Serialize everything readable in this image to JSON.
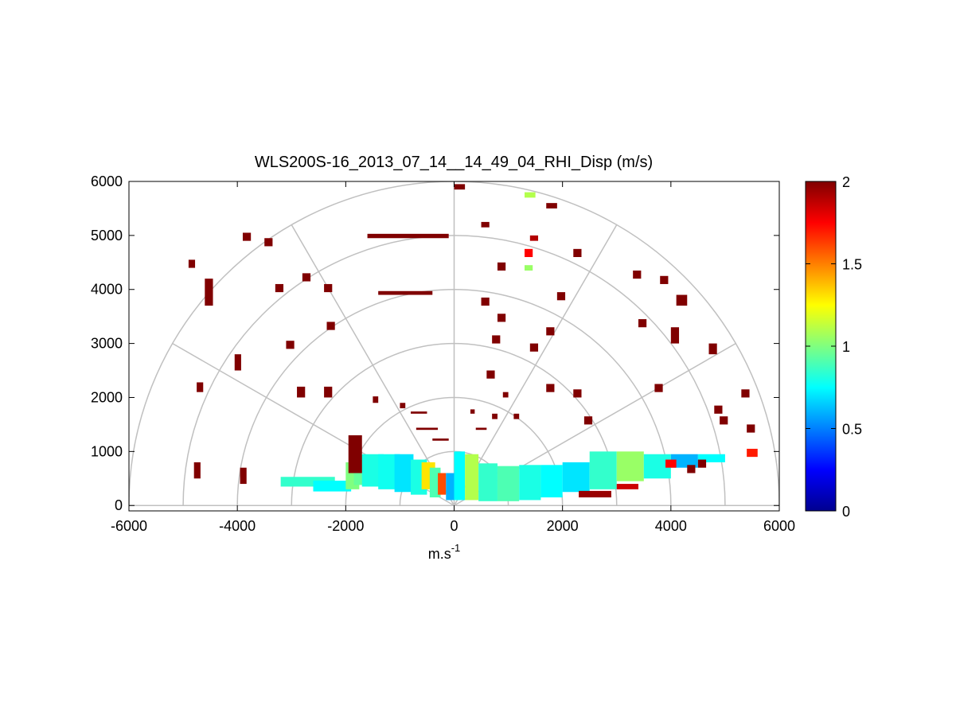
{
  "chart_data": {
    "type": "heatmap",
    "subtype": "polar-rhi-sector",
    "title": "WLS200S-16_2013_07_14__14_49_04_RHI_Disp (m/s)",
    "xlabel": "m.s",
    "xlabel_superscript": "-1",
    "ylabel": "",
    "xlim": [
      -6000,
      6000
    ],
    "ylim": [
      -100,
      6000
    ],
    "x_ticks": [
      -6000,
      -4000,
      -2000,
      0,
      2000,
      4000,
      6000
    ],
    "y_ticks": [
      0,
      1000,
      2000,
      3000,
      4000,
      5000,
      6000
    ],
    "x_tick_labels": [
      "-6000",
      "-4000",
      "-2000",
      "0",
      "2000",
      "4000",
      "6000"
    ],
    "y_tick_labels": [
      "0",
      "1000",
      "2000",
      "3000",
      "4000",
      "5000",
      "6000"
    ],
    "polar_grid": {
      "range_rings": [
        1000,
        2000,
        3000,
        4000,
        5000,
        6000
      ],
      "spoke_angles_deg": [
        0,
        30,
        60,
        90,
        120,
        150,
        180
      ],
      "grid_color": "#c0c0c0"
    },
    "colorbar": {
      "colormap": "jet",
      "min": 0,
      "max": 2,
      "ticks": [
        0,
        0.5,
        1,
        1.5,
        2
      ],
      "tick_labels": [
        "0",
        "0.5",
        "1",
        "1.5",
        "2"
      ]
    },
    "cells": [
      {
        "x": -3200,
        "y": 350,
        "w": 1000,
        "h": 180,
        "v": 0.85
      },
      {
        "x": -2600,
        "y": 260,
        "w": 700,
        "h": 200,
        "v": 0.75
      },
      {
        "x": -2000,
        "y": 300,
        "w": 250,
        "h": 500,
        "v": 1.0
      },
      {
        "x": -1850,
        "y": 380,
        "w": 200,
        "h": 550,
        "v": 0.95
      },
      {
        "x": -1700,
        "y": 350,
        "w": 400,
        "h": 600,
        "v": 0.8
      },
      {
        "x": -1400,
        "y": 300,
        "w": 400,
        "h": 650,
        "v": 0.78
      },
      {
        "x": -1100,
        "y": 250,
        "w": 350,
        "h": 700,
        "v": 0.7
      },
      {
        "x": -800,
        "y": 200,
        "w": 300,
        "h": 650,
        "v": 0.8
      },
      {
        "x": -600,
        "y": 300,
        "w": 250,
        "h": 500,
        "v": 1.3
      },
      {
        "x": -450,
        "y": 150,
        "w": 200,
        "h": 550,
        "v": 0.9
      },
      {
        "x": -300,
        "y": 200,
        "w": 150,
        "h": 400,
        "v": 1.6
      },
      {
        "x": -150,
        "y": 100,
        "w": 150,
        "h": 500,
        "v": 0.6
      },
      {
        "x": 0,
        "y": 100,
        "w": 200,
        "h": 900,
        "v": 0.75
      },
      {
        "x": 200,
        "y": 100,
        "w": 250,
        "h": 850,
        "v": 1.1
      },
      {
        "x": 450,
        "y": 80,
        "w": 350,
        "h": 700,
        "v": 0.85
      },
      {
        "x": 800,
        "y": 80,
        "w": 400,
        "h": 650,
        "v": 0.9
      },
      {
        "x": 1200,
        "y": 100,
        "w": 400,
        "h": 650,
        "v": 0.8
      },
      {
        "x": 1600,
        "y": 150,
        "w": 400,
        "h": 600,
        "v": 0.75
      },
      {
        "x": 2000,
        "y": 250,
        "w": 500,
        "h": 550,
        "v": 0.7
      },
      {
        "x": 2500,
        "y": 300,
        "w": 500,
        "h": 700,
        "v": 0.85
      },
      {
        "x": 3000,
        "y": 450,
        "w": 500,
        "h": 550,
        "v": 1.05
      },
      {
        "x": 3500,
        "y": 500,
        "w": 500,
        "h": 450,
        "v": 0.8
      },
      {
        "x": 4000,
        "y": 700,
        "w": 500,
        "h": 250,
        "v": 0.6
      },
      {
        "x": 4500,
        "y": 800,
        "w": 500,
        "h": 150,
        "v": 0.75
      },
      {
        "x": 2300,
        "y": 150,
        "w": 600,
        "h": 120,
        "v": 1.95
      },
      {
        "x": 3000,
        "y": 300,
        "w": 400,
        "h": 100,
        "v": 1.85
      },
      {
        "x": 3900,
        "y": 700,
        "w": 200,
        "h": 150,
        "v": 1.75
      },
      {
        "x": 5400,
        "y": 900,
        "w": 200,
        "h": 150,
        "v": 1.7
      },
      {
        "x": -4800,
        "y": 500,
        "w": 120,
        "h": 300,
        "v": 2.0
      },
      {
        "x": -3950,
        "y": 400,
        "w": 120,
        "h": 300,
        "v": 2.0
      },
      {
        "x": -1950,
        "y": 600,
        "w": 250,
        "h": 700,
        "v": 2.0
      },
      {
        "x": -4750,
        "y": 2100,
        "w": 120,
        "h": 180,
        "v": 2.0
      },
      {
        "x": -4050,
        "y": 2500,
        "w": 120,
        "h": 300,
        "v": 2.0
      },
      {
        "x": -2900,
        "y": 2000,
        "w": 150,
        "h": 200,
        "v": 2.0
      },
      {
        "x": -2400,
        "y": 2000,
        "w": 150,
        "h": 200,
        "v": 2.0
      },
      {
        "x": -4600,
        "y": 3700,
        "w": 150,
        "h": 500,
        "v": 2.0
      },
      {
        "x": -4900,
        "y": 4400,
        "w": 120,
        "h": 150,
        "v": 2.0
      },
      {
        "x": -3500,
        "y": 4800,
        "w": 150,
        "h": 150,
        "v": 2.0
      },
      {
        "x": -3300,
        "y": 3950,
        "w": 150,
        "h": 150,
        "v": 2.0
      },
      {
        "x": -2350,
        "y": 3250,
        "w": 150,
        "h": 150,
        "v": 2.0
      },
      {
        "x": -2400,
        "y": 3950,
        "w": 150,
        "h": 150,
        "v": 2.0
      },
      {
        "x": -2800,
        "y": 4150,
        "w": 150,
        "h": 150,
        "v": 2.0
      },
      {
        "x": -3100,
        "y": 2900,
        "w": 150,
        "h": 150,
        "v": 2.0
      },
      {
        "x": -3900,
        "y": 4900,
        "w": 150,
        "h": 150,
        "v": 2.0
      },
      {
        "x": -1600,
        "y": 4950,
        "w": 1500,
        "h": 80,
        "v": 2.0
      },
      {
        "x": -1400,
        "y": 3900,
        "w": 1000,
        "h": 70,
        "v": 2.0
      },
      {
        "x": -1500,
        "y": 1900,
        "w": 100,
        "h": 120,
        "v": 2.0
      },
      {
        "x": -1000,
        "y": 1800,
        "w": 100,
        "h": 100,
        "v": 2.0
      },
      {
        "x": 0,
        "y": 5850,
        "w": 200,
        "h": 100,
        "v": 2.0
      },
      {
        "x": 500,
        "y": 5150,
        "w": 150,
        "h": 100,
        "v": 2.0
      },
      {
        "x": 1300,
        "y": 5700,
        "w": 200,
        "h": 100,
        "v": 1.1
      },
      {
        "x": 1700,
        "y": 5500,
        "w": 200,
        "h": 100,
        "v": 2.0
      },
      {
        "x": 1300,
        "y": 4600,
        "w": 150,
        "h": 150,
        "v": 1.75
      },
      {
        "x": 1300,
        "y": 4350,
        "w": 150,
        "h": 100,
        "v": 1.05
      },
      {
        "x": 1400,
        "y": 4900,
        "w": 150,
        "h": 100,
        "v": 1.9
      },
      {
        "x": 2200,
        "y": 4600,
        "w": 150,
        "h": 150,
        "v": 2.0
      },
      {
        "x": 1900,
        "y": 3800,
        "w": 150,
        "h": 150,
        "v": 2.0
      },
      {
        "x": 1700,
        "y": 3150,
        "w": 150,
        "h": 150,
        "v": 2.0
      },
      {
        "x": 1400,
        "y": 2850,
        "w": 150,
        "h": 150,
        "v": 2.0
      },
      {
        "x": 3300,
        "y": 4200,
        "w": 150,
        "h": 150,
        "v": 2.0
      },
      {
        "x": 3800,
        "y": 4100,
        "w": 150,
        "h": 150,
        "v": 2.0
      },
      {
        "x": 4100,
        "y": 3700,
        "w": 200,
        "h": 200,
        "v": 2.0
      },
      {
        "x": 3400,
        "y": 3300,
        "w": 150,
        "h": 150,
        "v": 2.0
      },
      {
        "x": 4700,
        "y": 2800,
        "w": 150,
        "h": 200,
        "v": 2.0
      },
      {
        "x": 4000,
        "y": 3000,
        "w": 150,
        "h": 300,
        "v": 2.0
      },
      {
        "x": 5300,
        "y": 2000,
        "w": 150,
        "h": 150,
        "v": 2.0
      },
      {
        "x": 5400,
        "y": 1350,
        "w": 150,
        "h": 150,
        "v": 2.0
      },
      {
        "x": 4800,
        "y": 1700,
        "w": 150,
        "h": 150,
        "v": 2.0
      },
      {
        "x": 4900,
        "y": 1500,
        "w": 150,
        "h": 150,
        "v": 2.0
      },
      {
        "x": 4500,
        "y": 700,
        "w": 150,
        "h": 150,
        "v": 2.0
      },
      {
        "x": 4300,
        "y": 600,
        "w": 150,
        "h": 150,
        "v": 2.0
      },
      {
        "x": 3700,
        "y": 2100,
        "w": 150,
        "h": 150,
        "v": 2.0
      },
      {
        "x": 2200,
        "y": 2000,
        "w": 150,
        "h": 150,
        "v": 2.0
      },
      {
        "x": 2400,
        "y": 1500,
        "w": 150,
        "h": 150,
        "v": 2.0
      },
      {
        "x": 1700,
        "y": 2100,
        "w": 150,
        "h": 150,
        "v": 2.0
      },
      {
        "x": 600,
        "y": 2350,
        "w": 150,
        "h": 150,
        "v": 2.0
      },
      {
        "x": 700,
        "y": 3000,
        "w": 150,
        "h": 150,
        "v": 2.0
      },
      {
        "x": 800,
        "y": 3400,
        "w": 150,
        "h": 150,
        "v": 2.0
      },
      {
        "x": 500,
        "y": 3700,
        "w": 150,
        "h": 150,
        "v": 2.0
      },
      {
        "x": 800,
        "y": 4350,
        "w": 150,
        "h": 150,
        "v": 2.0
      },
      {
        "x": 900,
        "y": 2000,
        "w": 100,
        "h": 100,
        "v": 2.0
      },
      {
        "x": 1100,
        "y": 1600,
        "w": 100,
        "h": 100,
        "v": 2.0
      },
      {
        "x": 700,
        "y": 1600,
        "w": 100,
        "h": 100,
        "v": 2.0
      },
      {
        "x": 300,
        "y": 1700,
        "w": 80,
        "h": 80,
        "v": 2.0
      },
      {
        "x": -800,
        "y": 1700,
        "w": 300,
        "h": 40,
        "v": 2.0
      },
      {
        "x": -700,
        "y": 1400,
        "w": 400,
        "h": 40,
        "v": 2.0
      },
      {
        "x": -400,
        "y": 1200,
        "w": 300,
        "h": 40,
        "v": 2.0
      },
      {
        "x": 400,
        "y": 1400,
        "w": 200,
        "h": 40,
        "v": 2.0
      }
    ]
  }
}
